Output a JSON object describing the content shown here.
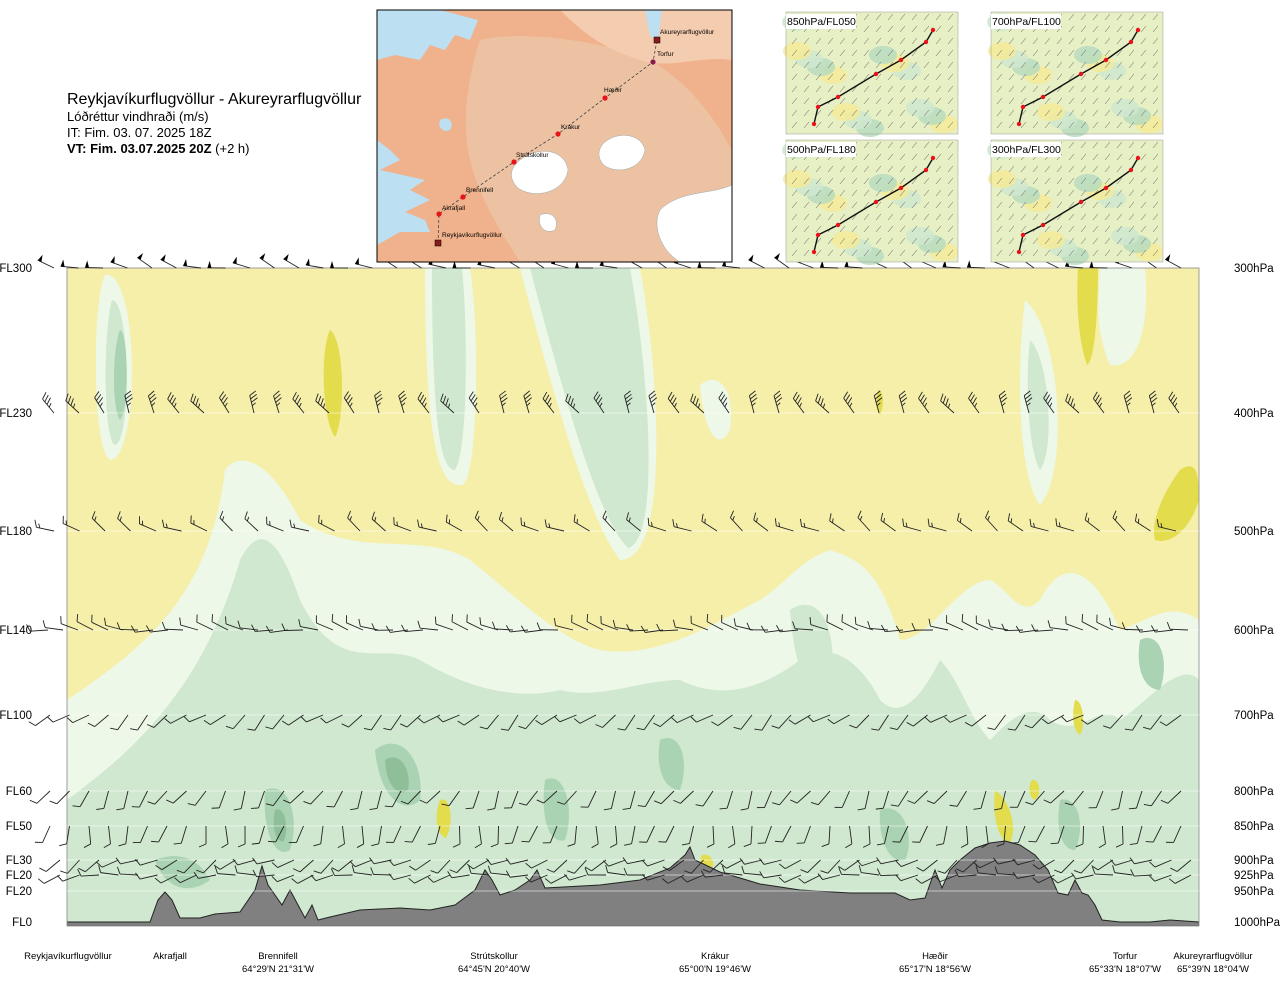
{
  "title": {
    "route": "Reykjavíkurflugvöllur - Akureyrarflugvöllur",
    "variable": "Lóðréttur vindhraði (m/s)",
    "init_time": "IT: Fim. 03. 07. 2025 18Z",
    "valid_time": "VT: Fim. 03.07.2025 20Z",
    "valid_offset": "(+2 h)"
  },
  "colors": {
    "background": "#f5efaa",
    "green_light": "#eef8e8",
    "green_mid": "#cfe8cf",
    "green_dark": "#a9d3b2",
    "green_deeper": "#8fbf98",
    "yellow_dark": "#e3dc4c",
    "terrain": "#808080",
    "map_sea": "#bcdff2",
    "map_land": "#f0b28c",
    "route_point": "#e8131a"
  },
  "map": {
    "labels": [
      "Akureyrarflugvöllur",
      "Torfur",
      "Hæðir",
      "Krákur",
      "Strútskollur",
      "Brennifell",
      "Akrafjall",
      "Reykjavíkurflugvöllur"
    ]
  },
  "insets": [
    {
      "label": "850hPa/FL050"
    },
    {
      "label": "700hPa/FL100"
    },
    {
      "label": "500hPa/FL180"
    },
    {
      "label": "300hPa/FL300"
    }
  ],
  "chart_data": {
    "type": "heatmap",
    "title": "Reykjavíkurflugvöllur - Akureyrarflugvöllur",
    "variable": "Lóðréttur vindhraði (m/s)",
    "x_axis": "cross-section distance along route",
    "waypoints": [
      {
        "name": "Reykjavíkurflugvöllur",
        "coord": ""
      },
      {
        "name": "Akrafjall",
        "coord": ""
      },
      {
        "name": "Brennifell",
        "coord": "64°29'N 21°31'W"
      },
      {
        "name": "Strútskollur",
        "coord": "64°45'N 20°40'W"
      },
      {
        "name": "Krákur",
        "coord": "65°00'N 19°46'W"
      },
      {
        "name": "Hæðir",
        "coord": "65°17'N 18°56'W"
      },
      {
        "name": "Torfur",
        "coord": "65°33'N 18°07'W"
      },
      {
        "name": "Akureyrarflugvöllur",
        "coord": "65°39'N 18°04'W"
      }
    ],
    "left_axis_levels": [
      "FL300",
      "FL230",
      "FL180",
      "FL140",
      "FL100",
      "FL60",
      "FL50",
      "FL30",
      "FL20",
      "FL20",
      "FL0"
    ],
    "right_axis_levels": [
      "300hPa",
      "400hPa",
      "500hPa",
      "600hPa",
      "700hPa",
      "800hPa",
      "850hPa",
      "900hPa",
      "925hPa",
      "950hPa",
      "1000hPa"
    ],
    "pressure_levels_hPa": [
      300,
      400,
      500,
      600,
      700,
      800,
      850,
      900,
      925,
      950,
      1000
    ],
    "grid": true,
    "legend": "none"
  }
}
